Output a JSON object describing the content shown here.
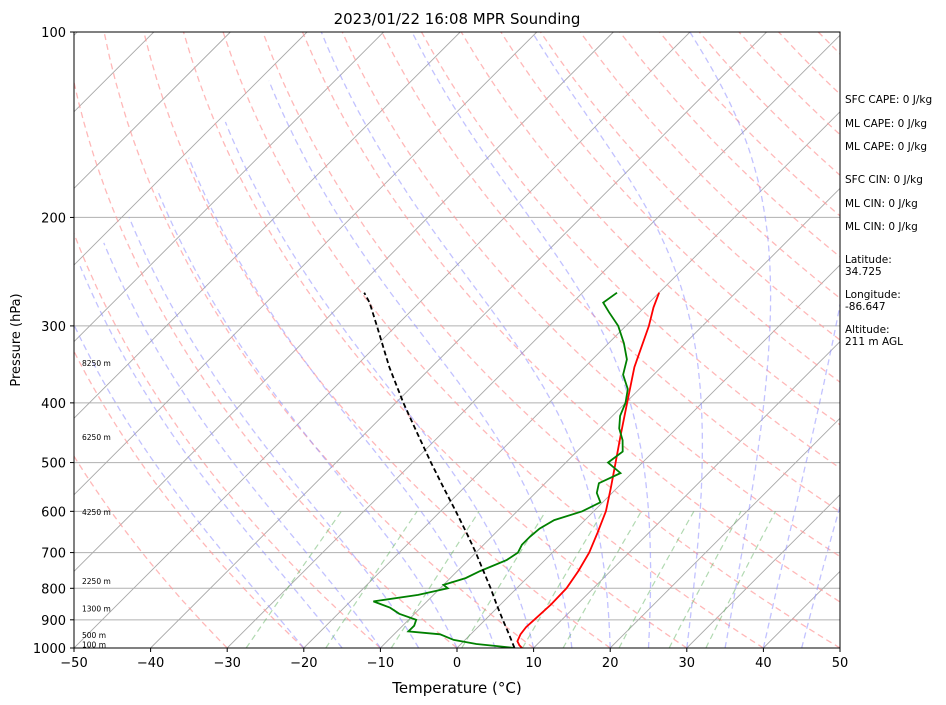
{
  "chart_data": {
    "type": "line",
    "title": "2023/01/22 16:08 MPR Sounding",
    "xlabel": "Temperature (°C)",
    "ylabel": "Pressure (hPa)",
    "xlim": [
      -50,
      50
    ],
    "ylim": [
      1000,
      100
    ],
    "y_scale": "log",
    "grid": true,
    "x_ticks": [
      "−50",
      "−40",
      "−30",
      "−20",
      "−10",
      "0",
      "10",
      "20",
      "30",
      "40",
      "50"
    ],
    "y_ticks": [
      {
        "p": 100,
        "label": "100"
      },
      {
        "p": 200,
        "label": "200"
      },
      {
        "p": 300,
        "label": "300"
      },
      {
        "p": 400,
        "label": "400"
      },
      {
        "p": 500,
        "label": "500"
      },
      {
        "p": 600,
        "label": "600"
      },
      {
        "p": 700,
        "label": "700"
      },
      {
        "p": 800,
        "label": "800"
      },
      {
        "p": 900,
        "label": "900"
      },
      {
        "p": 1000,
        "label": "1000"
      }
    ],
    "height_labels": [
      {
        "p": 988,
        "label": "100 m"
      },
      {
        "p": 955,
        "label": "500 m"
      },
      {
        "p": 865,
        "label": "1300 m"
      },
      {
        "p": 780,
        "label": "2250 m"
      },
      {
        "p": 603,
        "label": "4250 m"
      },
      {
        "p": 455,
        "label": "6250 m"
      },
      {
        "p": 345,
        "label": "8250 m"
      }
    ],
    "series": [
      {
        "color": "#ff0000",
        "points": [
          [
            1000,
            8.5
          ],
          [
            990,
            7.8
          ],
          [
            975,
            7.0
          ],
          [
            950,
            6.5
          ],
          [
            925,
            6.3
          ],
          [
            900,
            6.4
          ],
          [
            850,
            6.6
          ],
          [
            800,
            6.5
          ],
          [
            750,
            5.8
          ],
          [
            700,
            4.8
          ],
          [
            650,
            3.3
          ],
          [
            600,
            1.6
          ],
          [
            550,
            -0.8
          ],
          [
            500,
            -3.5
          ],
          [
            450,
            -6.5
          ],
          [
            400,
            -9.8
          ],
          [
            350,
            -13.5
          ],
          [
            300,
            -17.0
          ],
          [
            280,
            -18.8
          ],
          [
            265,
            -20.0
          ]
        ]
      },
      {
        "color": "#008000",
        "points": [
          [
            1000,
            7.5
          ],
          [
            993,
            5.0
          ],
          [
            985,
            2.0
          ],
          [
            970,
            -1.5
          ],
          [
            950,
            -4.0
          ],
          [
            940,
            -8.5
          ],
          [
            920,
            -8.5
          ],
          [
            900,
            -9.0
          ],
          [
            880,
            -12.0
          ],
          [
            860,
            -14.0
          ],
          [
            840,
            -17.0
          ],
          [
            820,
            -12.0
          ],
          [
            800,
            -9.0
          ],
          [
            790,
            -10.0
          ],
          [
            770,
            -8.0
          ],
          [
            750,
            -7.0
          ],
          [
            720,
            -5.0
          ],
          [
            700,
            -4.5
          ],
          [
            680,
            -5.0
          ],
          [
            660,
            -5.0
          ],
          [
            640,
            -4.8
          ],
          [
            620,
            -4.0
          ],
          [
            600,
            -1.5
          ],
          [
            580,
            -0.3
          ],
          [
            560,
            -2.0
          ],
          [
            540,
            -3.0
          ],
          [
            520,
            -1.5
          ],
          [
            500,
            -4.5
          ],
          [
            480,
            -4.0
          ],
          [
            460,
            -5.5
          ],
          [
            440,
            -7.5
          ],
          [
            420,
            -9.0
          ],
          [
            400,
            -10.0
          ],
          [
            380,
            -11.5
          ],
          [
            360,
            -14.0
          ],
          [
            340,
            -15.5
          ],
          [
            320,
            -18.0
          ],
          [
            300,
            -21.0
          ],
          [
            285,
            -24.0
          ],
          [
            275,
            -26.0
          ],
          [
            265,
            -25.5
          ]
        ]
      },
      {
        "color": "#000000",
        "points": [
          [
            1000,
            7.5
          ],
          [
            950,
            5.0
          ],
          [
            900,
            2.3
          ],
          [
            850,
            -0.5
          ],
          [
            800,
            -3.4
          ],
          [
            750,
            -6.6
          ],
          [
            700,
            -10.0
          ],
          [
            650,
            -13.8
          ],
          [
            600,
            -18.0
          ],
          [
            550,
            -22.6
          ],
          [
            500,
            -27.6
          ],
          [
            450,
            -33.0
          ],
          [
            400,
            -39.0
          ],
          [
            350,
            -45.5
          ],
          [
            300,
            -52.5
          ],
          [
            275,
            -56.5
          ],
          [
            265,
            -58.5
          ]
        ]
      }
    ]
  },
  "indices": {
    "sfc_cape": "SFC CAPE: 0 J/kg",
    "ml_cape_1": "ML CAPE: 0 J/kg",
    "ml_cape_2": "ML CAPE: 0 J/kg",
    "sfc_cin": "SFC CIN: 0 J/kg",
    "ml_cin_1": "ML CIN: 0 J/kg",
    "ml_cin_2": "ML CIN: 0 J/kg",
    "latitude": "Latitude:\n34.725",
    "longitude": "Longitude:\n-86.647",
    "altitude": "Altitude:\n211 m AGL"
  }
}
